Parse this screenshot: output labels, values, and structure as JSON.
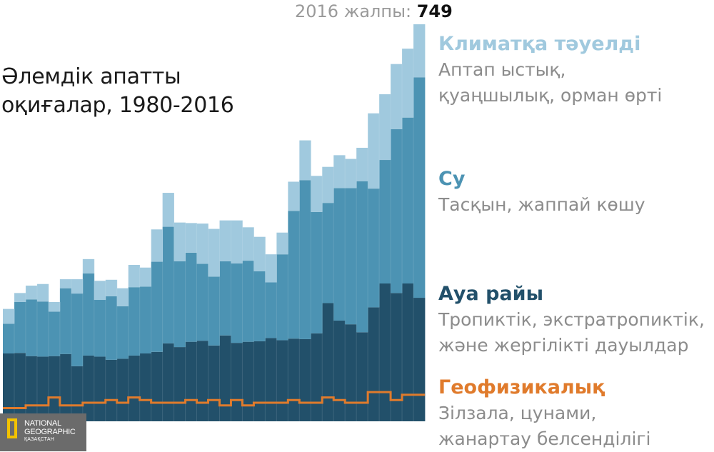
{
  "header": {
    "title_line1": "Әлемдік апатты",
    "title_line2": "оқиғалар, 1980-2016",
    "total_label": "2016 жалпы: ",
    "total_value": "749"
  },
  "legend": [
    {
      "name": "Климатқа тәуелді",
      "desc1": "Аптап ыстық,",
      "desc2": "қуаңшылық, орман өрті",
      "color": "#a0c9de"
    },
    {
      "name": "Су",
      "desc1": "Тасқын, жаппай көшу",
      "desc2": "",
      "color": "#4c93b3"
    },
    {
      "name": "Ауа райы",
      "desc1": "Тропиктік, экстратропиктік,",
      "desc2": "және жергілікті дауылдар",
      "color": "#22506a"
    },
    {
      "name": "Геофизикалық",
      "desc1": "Зілзала, цунами,",
      "desc2": "жанартау белсенділігі",
      "color": "#e07b2c"
    }
  ],
  "logo": {
    "line1": "NATIONAL",
    "line2": "GEOGRAPHIC",
    "line3": "ҚАЗАҚСТАН"
  },
  "chart_data": {
    "type": "area",
    "stacked": true,
    "title": "Әлемдік апатты оқиғалар, 1980-2016",
    "x": [
      1980,
      1981,
      1982,
      1983,
      1984,
      1985,
      1986,
      1987,
      1988,
      1989,
      1990,
      1991,
      1992,
      1993,
      1994,
      1995,
      1996,
      1997,
      1998,
      1999,
      2000,
      2001,
      2002,
      2003,
      2004,
      2005,
      2006,
      2007,
      2008,
      2009,
      2010,
      2011,
      2012,
      2013,
      2014,
      2015,
      2016
    ],
    "ylim": [
      0,
      749
    ],
    "series": [
      {
        "name": "Геофизикалық",
        "color": "#e07b2c",
        "values": [
          25,
          25,
          30,
          30,
          45,
          30,
          30,
          35,
          35,
          40,
          35,
          45,
          40,
          35,
          35,
          35,
          40,
          35,
          40,
          30,
          40,
          30,
          35,
          35,
          35,
          40,
          35,
          35,
          45,
          40,
          35,
          35,
          55,
          55,
          40,
          50,
          50
        ]
      },
      {
        "name": "Ауа райы",
        "color": "#22506a",
        "values": [
          103,
          104,
          93,
          92,
          78,
          97,
          74,
          89,
          87,
          76,
          83,
          79,
          88,
          96,
          112,
          105,
          110,
          117,
          103,
          132,
          108,
          120,
          116,
          122,
          118,
          116,
          120,
          131,
          178,
          150,
          148,
          133,
          160,
          205,
          202,
          210,
          183
        ]
      },
      {
        "name": "Су",
        "color": "#4c93b3",
        "values": [
          56,
          96,
          107,
          104,
          84,
          124,
          137,
          155,
          107,
          120,
          99,
          129,
          126,
          170,
          220,
          162,
          168,
          145,
          130,
          140,
          150,
          153,
          132,
          105,
          162,
          241,
          300,
          229,
          189,
          250,
          257,
          285,
          224,
          233,
          309,
          313,
          416
        ]
      },
      {
        "name": "Климатқа тәуелді",
        "color": "#a0c9de",
        "values": [
          28,
          17,
          26,
          33,
          18,
          17,
          27,
          27,
          36,
          31,
          34,
          42,
          36,
          61,
          64,
          73,
          56,
          76,
          90,
          77,
          81,
          63,
          65,
          53,
          41,
          55,
          75,
          68,
          68,
          62,
          55,
          63,
          142,
          124,
          123,
          130,
          100
        ]
      }
    ]
  }
}
